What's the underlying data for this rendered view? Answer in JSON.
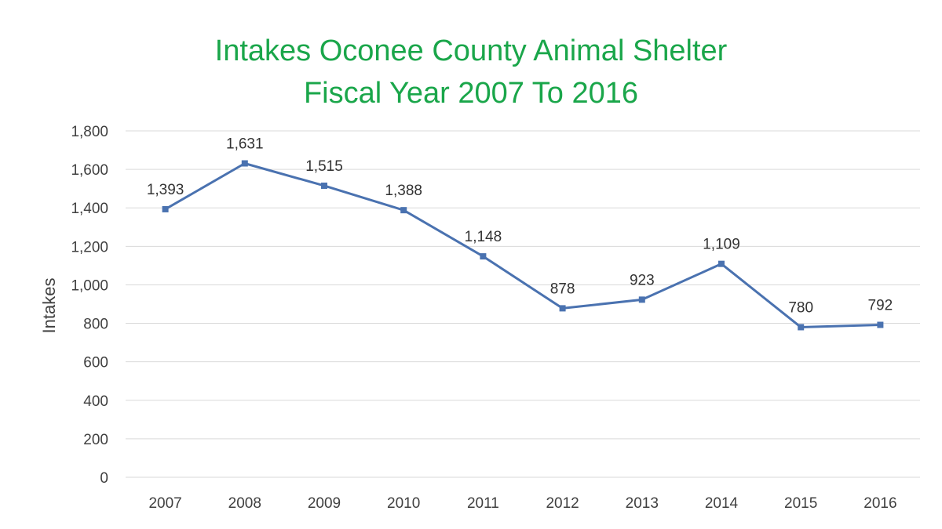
{
  "chart_data": {
    "type": "line",
    "title": "Intakes Oconee County Animal Shelter",
    "subtitle": "Fiscal Year 2007 To 2016",
    "xlabel": "",
    "ylabel": "Intakes",
    "categories": [
      "2007",
      "2008",
      "2009",
      "2010",
      "2011",
      "2012",
      "2013",
      "2014",
      "2015",
      "2016"
    ],
    "series": [
      {
        "values": [
          1393,
          1631,
          1515,
          1388,
          1148,
          878,
          923,
          1109,
          780,
          792
        ],
        "labels": [
          "1,393",
          "1,631",
          "1,515",
          "1,388",
          "1,148",
          "878",
          "923",
          "1,109",
          "780",
          "792"
        ]
      }
    ],
    "ylim": [
      0,
      1800
    ],
    "yticks": [
      0,
      200,
      400,
      600,
      800,
      1000,
      1200,
      1400,
      1600,
      1800
    ],
    "ytick_labels": [
      "0",
      "200",
      "400",
      "600",
      "800",
      "1,000",
      "1,200",
      "1,400",
      "1,600",
      "1,800"
    ],
    "grid": "horizontal",
    "legend": "none",
    "colors": {
      "title": "#1aa64a",
      "line": "#4a72b0",
      "marker": "#4a72b0",
      "grid": "#d9d9d9",
      "text": "#404040"
    }
  }
}
